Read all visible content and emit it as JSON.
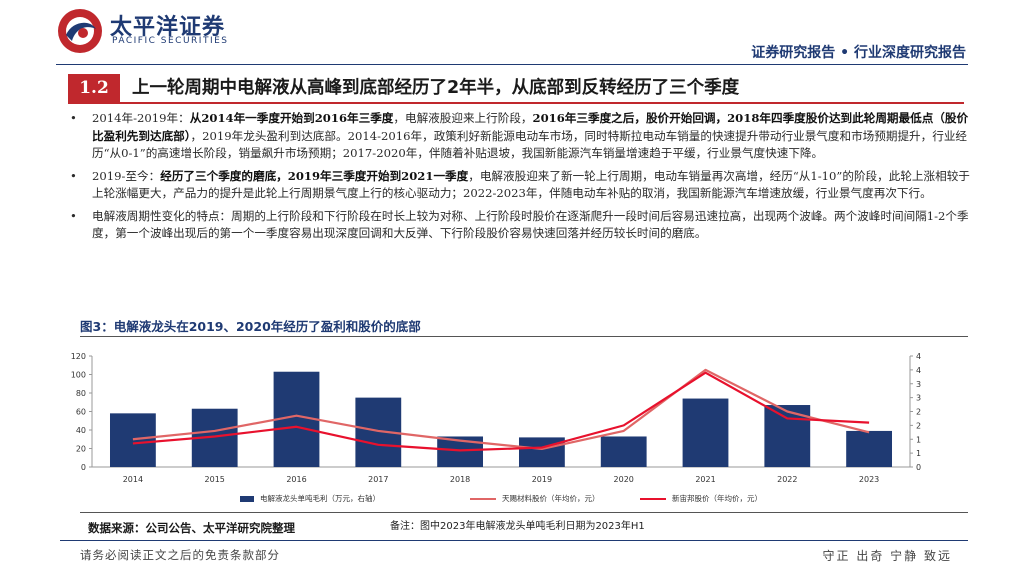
{
  "header": {
    "brand_cn": "太平洋证券",
    "brand_en": "PACIFIC SECURITIES",
    "report_type": "证券研究报告 • 行业深度研究报告"
  },
  "section": {
    "number": "1.2",
    "title": "上一轮周期中电解液从高峰到底部经历了2年半，从底部到反转经历了三个季度"
  },
  "bullets": [
    {
      "segments": [
        {
          "text": "2014年-2019年：",
          "bold": false
        },
        {
          "text": "从2014年一季度开始到2016年三季度",
          "bold": true
        },
        {
          "text": "，电解液股迎来上行阶段，",
          "bold": false
        },
        {
          "text": "2016年三季度之后，股价开始回调，2018年四季度股价达到此轮周期最低点（股价比盈利先到达底部）",
          "bold": true
        },
        {
          "text": "，2019年龙头盈利到达底部。2014-2016年，政策利好新能源电动车市场，同时特斯拉电动车销量的快速提升带动行业景气度和市场预期提升，行业经历“从0-1”的高速增长阶段，销量飙升市场预期；2017-2020年，伴随着补贴退坡，我国新能源汽车销量增速趋于平缓，行业景气度快速下降。",
          "bold": false
        }
      ]
    },
    {
      "segments": [
        {
          "text": "2019-至今：",
          "bold": false
        },
        {
          "text": "经历了三个季度的磨底，2019年三季度开始到2021一季度",
          "bold": true
        },
        {
          "text": "，电解液股迎来了新一轮上行周期，电动车销量再次高增，经历“从1-10”的阶段，此轮上涨相较于上轮涨幅更大，产品力的提升是此轮上行周期景气度上行的核心驱动力；2022-2023年，伴随电动车补贴的取消，我国新能源汽车增速放缓，行业景气度再次下行。",
          "bold": false
        }
      ]
    },
    {
      "segments": [
        {
          "text": "电解液周期性变化的特点：周期的上行阶段和下行阶段在时长上较为对称、上行阶段时股价在逐渐爬升一段时间后容易迅速拉高，出现两个波峰。两个波峰时间间隔1-2个季度，第一个波峰出现后的第一个一季度容易出现深度回调和大反弹、下行阶段股价容易快速回落并经历较长时间的磨底。",
          "bold": false
        }
      ]
    }
  ],
  "figure": {
    "caption": "图3：电解液龙头在2019、2020年经历了盈利和股价的底部",
    "source": "数据来源：公司公告、太平洋研究院整理",
    "note": "备注：图中2023年电解液龙头单吨毛利日期为2023年H1"
  },
  "chart_data": {
    "type": "bar",
    "categories": [
      "2014",
      "2015",
      "2016",
      "2017",
      "2018",
      "2019",
      "2020",
      "2021",
      "2022",
      "2023"
    ],
    "series": [
      {
        "name": "电解液龙头单吨毛利（万元，右轴）",
        "kind": "bar",
        "axis": "left",
        "color": "#1f3a73",
        "values": [
          58,
          63,
          103,
          75,
          33,
          32,
          33,
          74,
          67,
          39
        ]
      },
      {
        "name": "天赐材料股价（年均价，元）",
        "kind": "line",
        "axis": "right",
        "color": "#e06666",
        "values": [
          1.0,
          1.3,
          1.85,
          1.3,
          0.95,
          0.65,
          1.3,
          3.5,
          2.0,
          1.25
        ]
      },
      {
        "name": "新宙邦股价（年均价，元）",
        "kind": "line",
        "axis": "right",
        "color": "#e8112d",
        "values": [
          0.85,
          1.1,
          1.45,
          0.8,
          0.6,
          0.7,
          1.5,
          3.4,
          1.75,
          1.6
        ]
      }
    ],
    "ylim_left": [
      0,
      120
    ],
    "yticks_left": [
      "0",
      "20",
      "40",
      "60",
      "80",
      "100",
      "120"
    ],
    "ylim_right": [
      0,
      4
    ],
    "yticks_right": [
      "0",
      "1",
      "1",
      "2",
      "2",
      "3",
      "3",
      "4",
      "4"
    ],
    "legend_position": "bottom"
  },
  "footer": {
    "disclaimer": "请务必阅读正文之后的免责条款部分",
    "slogan": "守正 出奇 宁静 致远"
  }
}
